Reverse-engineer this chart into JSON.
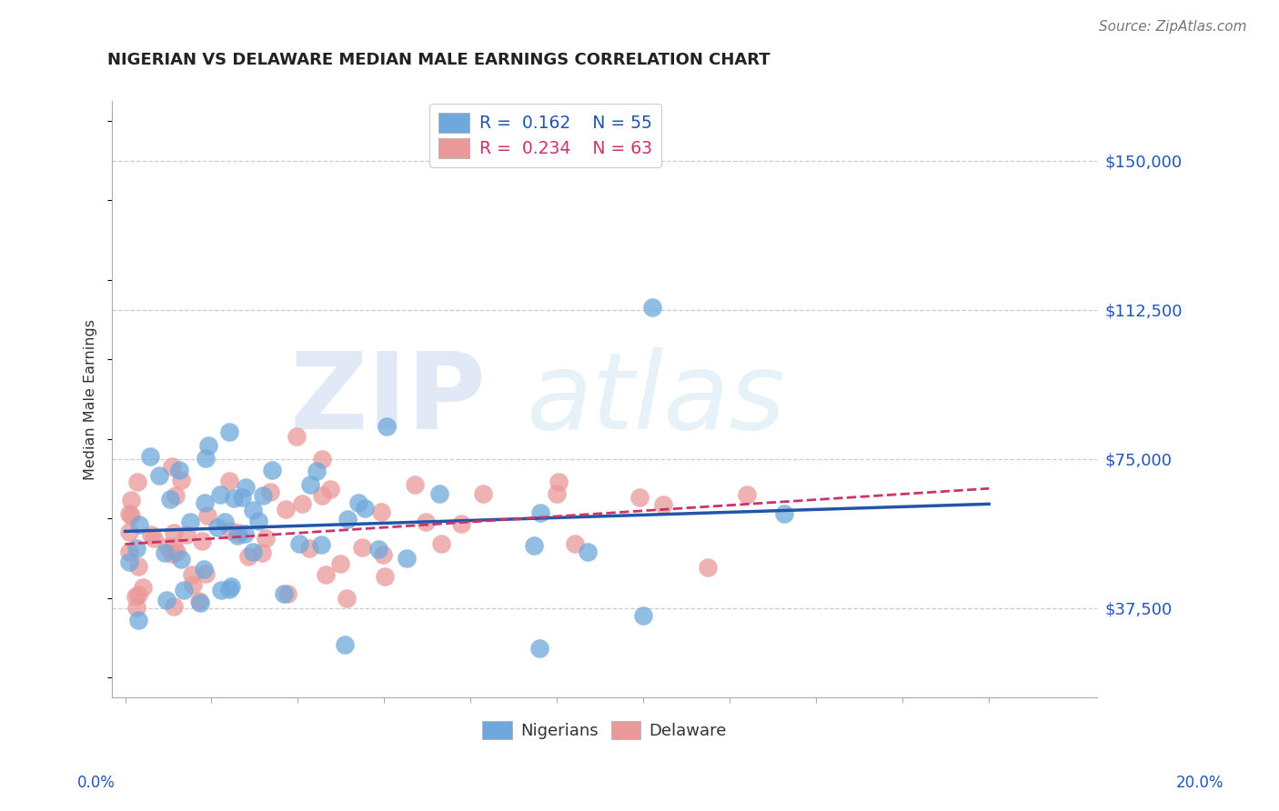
{
  "title": "NIGERIAN VS DELAWARE MEDIAN MALE EARNINGS CORRELATION CHART",
  "source": "Source: ZipAtlas.com",
  "ylabel": "Median Male Earnings",
  "ytick_labels": [
    "$37,500",
    "$75,000",
    "$112,500",
    "$150,000"
  ],
  "ytick_values": [
    37500,
    75000,
    112500,
    150000
  ],
  "ymin": 15000,
  "ymax": 165000,
  "xmin": -0.003,
  "xmax": 0.225,
  "legend_r_nigerian": "0.162",
  "legend_n_nigerian": "55",
  "legend_r_delaware": "0.234",
  "legend_n_delaware": "63",
  "color_nigerian": "#6fa8dc",
  "color_delaware": "#ea9999",
  "color_trendline_nigerian": "#2255aa",
  "color_trendline_delaware": "#cc3366",
  "background_color": "#ffffff"
}
